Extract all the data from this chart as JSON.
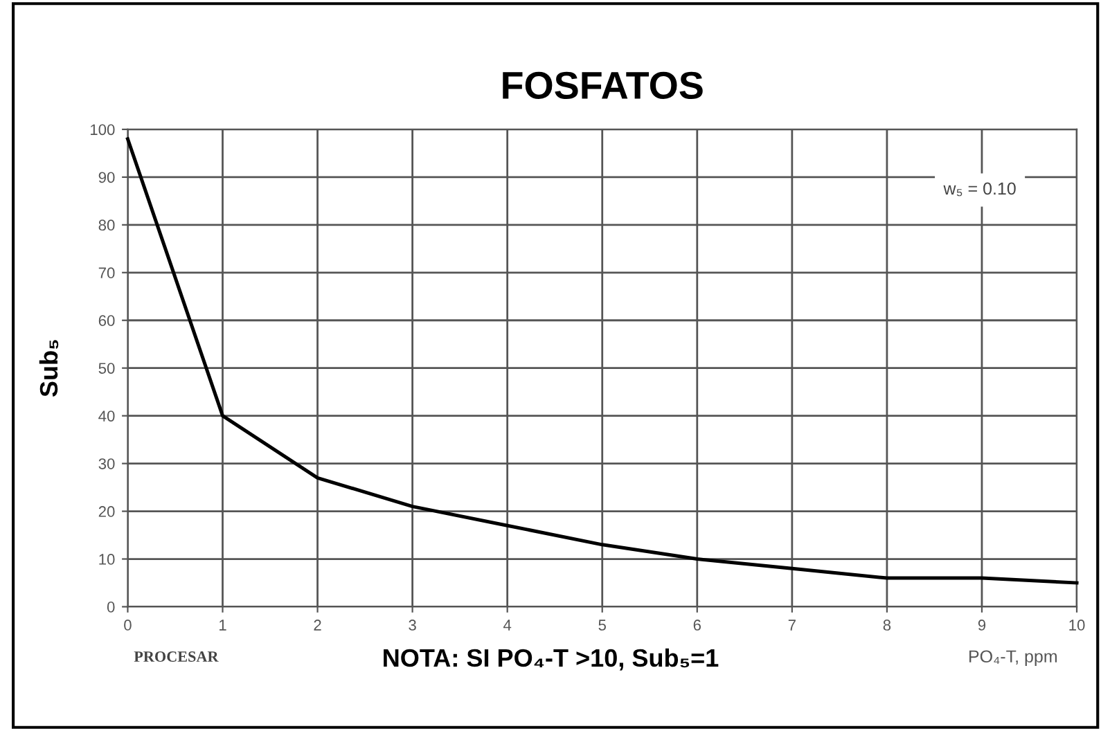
{
  "chart_data": {
    "type": "line",
    "title": "FOSFATOS",
    "ylabel": "Sub₅",
    "xlabel": "PO₄-T, ppm",
    "x": [
      0,
      1,
      2,
      3,
      4,
      5,
      6,
      7,
      8,
      9,
      10
    ],
    "series": [
      {
        "color": "#000000",
        "values": [
          98,
          40,
          27,
          21,
          17,
          13,
          10,
          8,
          6,
          6,
          5
        ]
      }
    ],
    "xlim": [
      0,
      10
    ],
    "xticks": [
      0,
      1,
      2,
      3,
      4,
      5,
      6,
      7,
      8,
      9,
      10
    ],
    "ylim": [
      0,
      100
    ],
    "yticks": [
      0,
      10,
      20,
      30,
      40,
      50,
      60,
      70,
      80,
      90,
      100
    ],
    "grid": true,
    "marker": "none",
    "line_style": "solid",
    "annotations": [
      "w₅ = 0.10",
      "PROCESAR",
      "NOTA: SI PO₄-T >10, Sub₅=1"
    ]
  }
}
